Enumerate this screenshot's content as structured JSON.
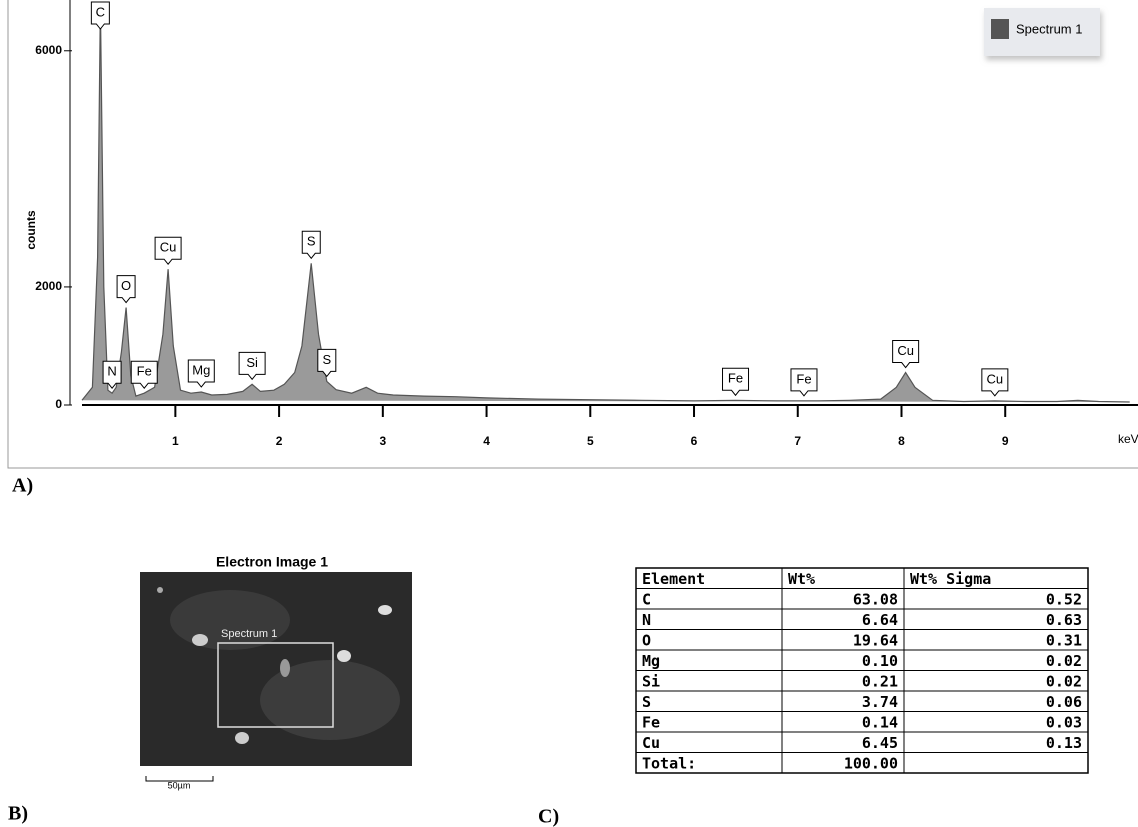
{
  "chart_data": {
    "type": "area",
    "x_label": "keV",
    "y_label": "counts",
    "xlim": [
      0.1,
      10.28
    ],
    "ylim": [
      0,
      6860
    ],
    "xticks": [
      1,
      2,
      3,
      4,
      5,
      6,
      7,
      8,
      9
    ],
    "yticks": [
      0,
      2000,
      6000
    ],
    "series": [
      {
        "name": "Spectrum 1",
        "color": "#9a9a9a",
        "x": [
          0.1,
          0.2,
          0.25,
          0.277,
          0.31,
          0.35,
          0.39,
          0.43,
          0.48,
          0.525,
          0.57,
          0.62,
          0.7,
          0.8,
          0.88,
          0.93,
          0.98,
          1.05,
          1.15,
          1.25,
          1.35,
          1.5,
          1.65,
          1.74,
          1.82,
          1.95,
          2.05,
          2.15,
          2.22,
          2.31,
          2.38,
          2.46,
          2.55,
          2.7,
          2.84,
          2.95,
          3.1,
          3.4,
          3.7,
          4.0,
          4.5,
          5.0,
          5.5,
          6.0,
          6.4,
          6.8,
          7.2,
          7.5,
          7.8,
          7.95,
          8.04,
          8.13,
          8.3,
          8.6,
          8.9,
          9.2,
          9.5,
          9.7,
          9.9,
          10.2
        ],
        "values": [
          80,
          300,
          2500,
          6800,
          2000,
          250,
          200,
          300,
          900,
          1650,
          500,
          150,
          200,
          300,
          1200,
          2300,
          1000,
          250,
          200,
          220,
          170,
          180,
          230,
          350,
          230,
          250,
          350,
          550,
          1000,
          2400,
          1200,
          400,
          260,
          200,
          300,
          200,
          170,
          150,
          140,
          120,
          100,
          90,
          80,
          70,
          80,
          70,
          70,
          80,
          100,
          300,
          550,
          300,
          80,
          60,
          70,
          60,
          60,
          80,
          60,
          50
        ]
      }
    ],
    "peak_labels": [
      {
        "label": "C",
        "x": 0.277
      },
      {
        "label": "N",
        "x": 0.39
      },
      {
        "label": "O",
        "x": 0.525
      },
      {
        "label": "Fe",
        "x": 0.7
      },
      {
        "label": "Cu",
        "x": 0.93
      },
      {
        "label": "Mg",
        "x": 1.25
      },
      {
        "label": "Si",
        "x": 1.74
      },
      {
        "label": "S",
        "x": 2.31
      },
      {
        "label": "S",
        "x": 2.46
      },
      {
        "label": "Fe",
        "x": 6.4
      },
      {
        "label": "Fe",
        "x": 7.06
      },
      {
        "label": "Cu",
        "x": 8.04
      },
      {
        "label": "Cu",
        "x": 8.9
      }
    ],
    "legend": "top-right"
  },
  "panels": {
    "a": "A)",
    "b": "B)",
    "c": "C)"
  },
  "image": {
    "title": "Electron Image 1",
    "region": "Spectrum 1",
    "scale": "50µm"
  },
  "table": {
    "header": [
      "Element",
      "Wt%",
      "Wt% Sigma"
    ],
    "rows": [
      [
        "C",
        "63.08",
        "0.52"
      ],
      [
        "N",
        "6.64",
        "0.63"
      ],
      [
        "O",
        "19.64",
        "0.31"
      ],
      [
        "Mg",
        "0.10",
        "0.02"
      ],
      [
        "Si",
        "0.21",
        "0.02"
      ],
      [
        "S",
        "3.74",
        "0.06"
      ],
      [
        "Fe",
        "0.14",
        "0.03"
      ],
      [
        "Cu",
        "6.45",
        "0.13"
      ],
      [
        "Total:",
        "100.00"
      ]
    ]
  }
}
